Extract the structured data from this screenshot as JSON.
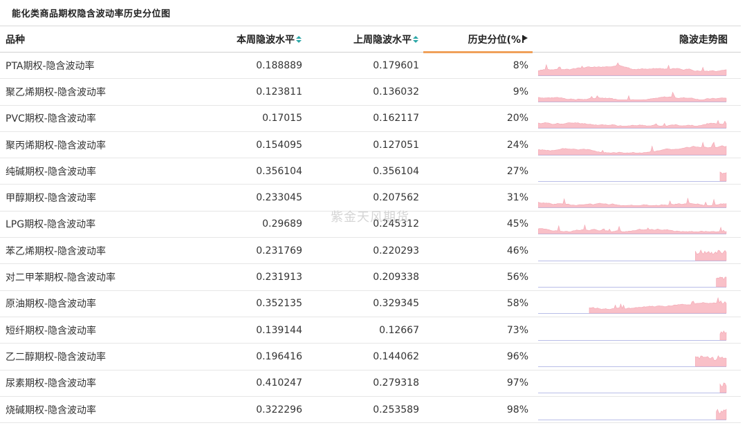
{
  "page_title": "能化类商品期权隐含波动率历史分位图",
  "watermark": "紫金天风期货",
  "colors": {
    "sparkline_fill": "#f9c0c8",
    "sparkline_line": "#f4a5b1",
    "baseline": "#b8bde8",
    "sort_icon": "#2aa6a6",
    "active_underline": "#f0a15a"
  },
  "header": {
    "name": "品种",
    "current": "本周隐波水平",
    "previous": "上周隐波水平",
    "percentile": "历史分位(%",
    "trend": "隐波走势图"
  },
  "rows": [
    {
      "name": "PTA期权-隐含波动率",
      "current": "0.188889",
      "previous": "0.179601",
      "percentile": "8%",
      "trend_start": 0.0,
      "trend_seed": 3
    },
    {
      "name": "聚乙烯期权-隐含波动率",
      "current": "0.123811",
      "previous": "0.136032",
      "percentile": "9%",
      "trend_start": 0.0,
      "trend_seed": 7
    },
    {
      "name": "PVC期权-隐含波动率",
      "current": "0.17015",
      "previous": "0.162117",
      "percentile": "20%",
      "trend_start": 0.0,
      "trend_seed": 11
    },
    {
      "name": "聚丙烯期权-隐含波动率",
      "current": "0.154095",
      "previous": "0.127051",
      "percentile": "24%",
      "trend_start": 0.0,
      "trend_seed": 5
    },
    {
      "name": "纯碱期权-隐含波动率",
      "current": "0.356104",
      "previous": "0.356104",
      "percentile": "27%",
      "trend_start": 0.96,
      "trend_seed": 2
    },
    {
      "name": "甲醇期权-隐含波动率",
      "current": "0.233045",
      "previous": "0.207562",
      "percentile": "31%",
      "trend_start": 0.0,
      "trend_seed": 13
    },
    {
      "name": "LPG期权-隐含波动率",
      "current": "0.29689",
      "previous": "0.245312",
      "percentile": "45%",
      "trend_start": 0.0,
      "trend_seed": 17
    },
    {
      "name": "苯乙烯期权-隐含波动率",
      "current": "0.231769",
      "previous": "0.220293",
      "percentile": "46%",
      "trend_start": 0.83,
      "trend_seed": 19
    },
    {
      "name": "对二甲苯期权-隐含波动率",
      "current": "0.231913",
      "previous": "0.209338",
      "percentile": "56%",
      "trend_start": 0.94,
      "trend_seed": 23
    },
    {
      "name": "原油期权-隐含波动率",
      "current": "0.352135",
      "previous": "0.329345",
      "percentile": "58%",
      "trend_start": 0.27,
      "trend_seed": 29
    },
    {
      "name": "短纤期权-隐含波动率",
      "current": "0.139144",
      "previous": "0.12667",
      "percentile": "73%",
      "trend_start": 0.96,
      "trend_seed": 31
    },
    {
      "name": "乙二醇期权-隐含波动率",
      "current": "0.196416",
      "previous": "0.144062",
      "percentile": "96%",
      "trend_start": 0.83,
      "trend_seed": 37
    },
    {
      "name": "尿素期权-隐含波动率",
      "current": "0.410247",
      "previous": "0.279318",
      "percentile": "97%",
      "trend_start": 0.96,
      "trend_seed": 41
    },
    {
      "name": "烧碱期权-隐含波动率",
      "current": "0.322296",
      "previous": "0.253589",
      "percentile": "98%",
      "trend_start": 0.94,
      "trend_seed": 43
    }
  ]
}
